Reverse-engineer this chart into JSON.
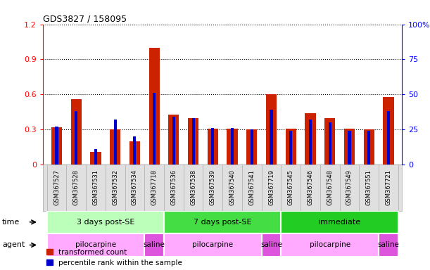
{
  "title": "GDS3827 / 158095",
  "samples": [
    "GSM367527",
    "GSM367528",
    "GSM367531",
    "GSM367532",
    "GSM367534",
    "GSM367718",
    "GSM367536",
    "GSM367538",
    "GSM367539",
    "GSM367540",
    "GSM367541",
    "GSM367719",
    "GSM367545",
    "GSM367546",
    "GSM367548",
    "GSM367549",
    "GSM367551",
    "GSM367721"
  ],
  "red_values": [
    0.32,
    0.56,
    0.11,
    0.3,
    0.2,
    1.0,
    0.43,
    0.4,
    0.31,
    0.31,
    0.3,
    0.6,
    0.31,
    0.44,
    0.4,
    0.31,
    0.3,
    0.58
  ],
  "blue_values_pct": [
    27,
    38,
    11,
    32,
    20,
    51,
    34,
    33,
    26,
    26,
    25,
    39,
    24,
    32,
    30,
    24,
    24,
    38
  ],
  "time_groups": [
    {
      "label": "3 days post-SE",
      "start": 0,
      "end": 6,
      "color": "#bbffbb"
    },
    {
      "label": "7 days post-SE",
      "start": 6,
      "end": 12,
      "color": "#44dd44"
    },
    {
      "label": "immediate",
      "start": 12,
      "end": 18,
      "color": "#22cc22"
    }
  ],
  "agent_groups": [
    {
      "label": "pilocarpine",
      "start": 0,
      "end": 5,
      "color": "#ffaaff"
    },
    {
      "label": "saline",
      "start": 5,
      "end": 6,
      "color": "#dd55dd"
    },
    {
      "label": "pilocarpine",
      "start": 6,
      "end": 11,
      "color": "#ffaaff"
    },
    {
      "label": "saline",
      "start": 11,
      "end": 12,
      "color": "#dd55dd"
    },
    {
      "label": "pilocarpine",
      "start": 12,
      "end": 17,
      "color": "#ffaaff"
    },
    {
      "label": "saline",
      "start": 17,
      "end": 18,
      "color": "#dd55dd"
    }
  ],
  "ylim_left": [
    0,
    1.2
  ],
  "ylim_right": [
    0,
    100
  ],
  "yticks_left": [
    0,
    0.3,
    0.6,
    0.9,
    1.2
  ],
  "yticks_right": [
    0,
    25,
    50,
    75,
    100
  ],
  "bar_color_red": "#cc2200",
  "bar_color_blue": "#0000cc",
  "background_color": "#ffffff",
  "legend_red": "transformed count",
  "legend_blue": "percentile rank within the sample",
  "xlabel_color": "#cccccc",
  "time_label_fontsize": 8,
  "agent_label_fontsize": 8
}
